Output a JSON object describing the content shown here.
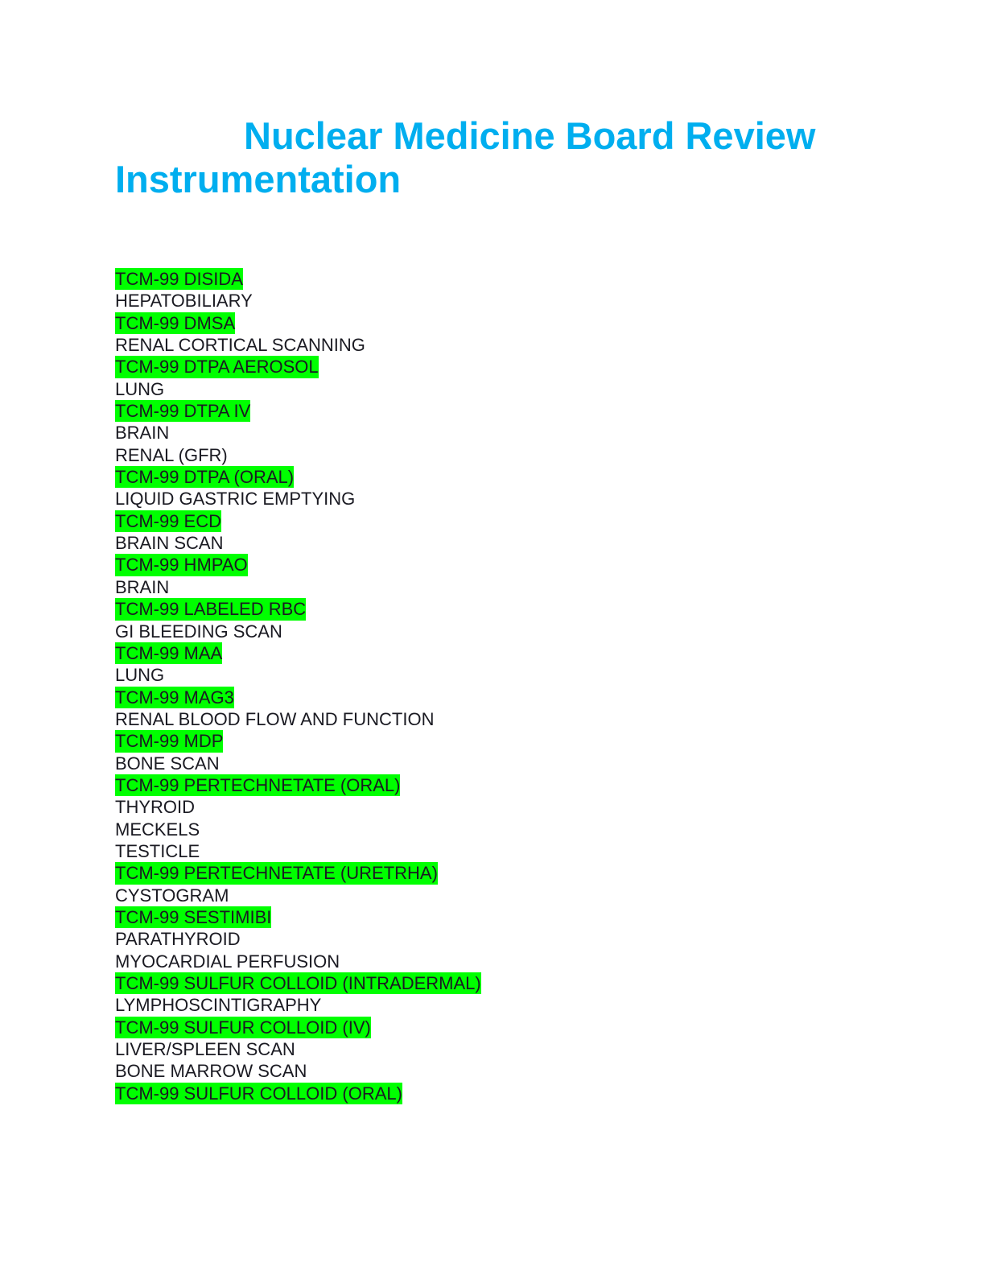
{
  "title": {
    "line1": "Nuclear Medicine Board Review",
    "line2": "Instrumentation"
  },
  "colors": {
    "title": "#00AEEF",
    "highlight": "#00FF00",
    "text": "#1a1a22"
  },
  "entries": [
    {
      "text": "TCM-99 DISIDA",
      "highlighted": true
    },
    {
      "text": "HEPATOBILIARY",
      "highlighted": false
    },
    {
      "text": "TCM-99 DMSA",
      "highlighted": true
    },
    {
      "text": "RENAL CORTICAL SCANNING",
      "highlighted": false
    },
    {
      "text": "TCM-99 DTPA AEROSOL",
      "highlighted": true
    },
    {
      "text": "LUNG",
      "highlighted": false
    },
    {
      "text": "TCM-99 DTPA IV",
      "highlighted": true
    },
    {
      "text": "BRAIN",
      "highlighted": false
    },
    {
      "text": "RENAL (GFR)",
      "highlighted": false
    },
    {
      "text": "TCM-99 DTPA (ORAL)",
      "highlighted": true
    },
    {
      "text": "LIQUID GASTRIC EMPTYING",
      "highlighted": false
    },
    {
      "text": "TCM-99 ECD",
      "highlighted": true
    },
    {
      "text": "BRAIN SCAN",
      "highlighted": false
    },
    {
      "text": "TCM-99 HMPAO",
      "highlighted": true
    },
    {
      "text": "BRAIN",
      "highlighted": false
    },
    {
      "text": "TCM-99 LABELED RBC",
      "highlighted": true
    },
    {
      "text": "GI BLEEDING SCAN",
      "highlighted": false
    },
    {
      "text": "TCM-99 MAA",
      "highlighted": true
    },
    {
      "text": "LUNG",
      "highlighted": false
    },
    {
      "text": "TCM-99 MAG3",
      "highlighted": true
    },
    {
      "text": "RENAL BLOOD FLOW AND FUNCTION",
      "highlighted": false
    },
    {
      "text": "TCM-99 MDP",
      "highlighted": true
    },
    {
      "text": "BONE SCAN",
      "highlighted": false
    },
    {
      "text": "TCM-99 PERTECHNETATE (ORAL)",
      "highlighted": true
    },
    {
      "text": "THYROID",
      "highlighted": false
    },
    {
      "text": "MECKELS",
      "highlighted": false
    },
    {
      "text": "TESTICLE",
      "highlighted": false
    },
    {
      "text": "TCM-99 PERTECHNETATE (URETRHA)",
      "highlighted": true
    },
    {
      "text": "CYSTOGRAM",
      "highlighted": false
    },
    {
      "text": "TCM-99 SESTIMIBI",
      "highlighted": true
    },
    {
      "text": "PARATHYROID",
      "highlighted": false
    },
    {
      "text": "MYOCARDIAL PERFUSION",
      "highlighted": false
    },
    {
      "text": "TCM-99 SULFUR COLLOID (INTRADERMAL)",
      "highlighted": true
    },
    {
      "text": "LYMPHOSCINTIGRAPHY",
      "highlighted": false
    },
    {
      "text": "TCM-99 SULFUR COLLOID (IV)",
      "highlighted": true
    },
    {
      "text": "LIVER/SPLEEN SCAN",
      "highlighted": false
    },
    {
      "text": "BONE MARROW SCAN",
      "highlighted": false
    },
    {
      "text": "TCM-99 SULFUR COLLOID (ORAL)",
      "highlighted": true
    }
  ]
}
